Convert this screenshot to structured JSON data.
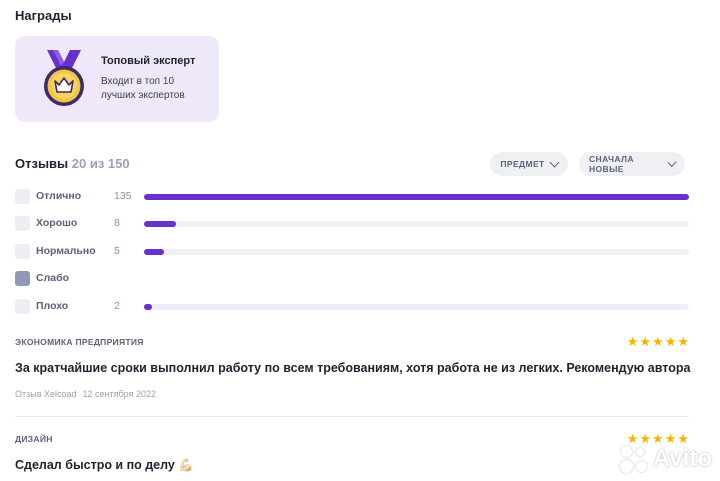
{
  "awards": {
    "title": "Награды",
    "card": {
      "title": "Топовый эксперт",
      "description": "Входит в топ 10 лучших экспертов",
      "icon": "medal-crown-icon"
    }
  },
  "reviews": {
    "title": "Отзывы",
    "count_text": "20 из 150",
    "filters": {
      "subject_label": "ПРЕДМЕТ",
      "sort_label": "СНАЧАЛА НОВЫЕ"
    },
    "rating_max": 135,
    "ratings": [
      {
        "label": "Отлично",
        "count": "135",
        "value": 135
      },
      {
        "label": "Хорошо",
        "count": "8",
        "value": 8
      },
      {
        "label": "Нормально",
        "count": "5",
        "value": 5
      },
      {
        "label": "Слабо",
        "count": "",
        "value": 0
      },
      {
        "label": "Плохо",
        "count": "2",
        "value": 2
      }
    ],
    "items": [
      {
        "subject": "ЭКОНОМИКА ПРЕДПРИЯТИЯ",
        "stars": 5,
        "text": "За кратчайшие сроки выполнил работу по всем требованиям, хотя работа не из легких. Рекомендую автора",
        "author": "Отзыв Xelcoad",
        "date": "12 сентября 2022"
      },
      {
        "subject": "ДИЗАЙН",
        "stars": 5,
        "text": "Сделал быстро и по делу 💪🏻"
      }
    ]
  },
  "watermark": {
    "text": "Avito"
  },
  "colors": {
    "accent": "#6a2fd0",
    "card_bg": "#efe8fa",
    "star": "#f5b400",
    "track": "#eff0f5"
  }
}
